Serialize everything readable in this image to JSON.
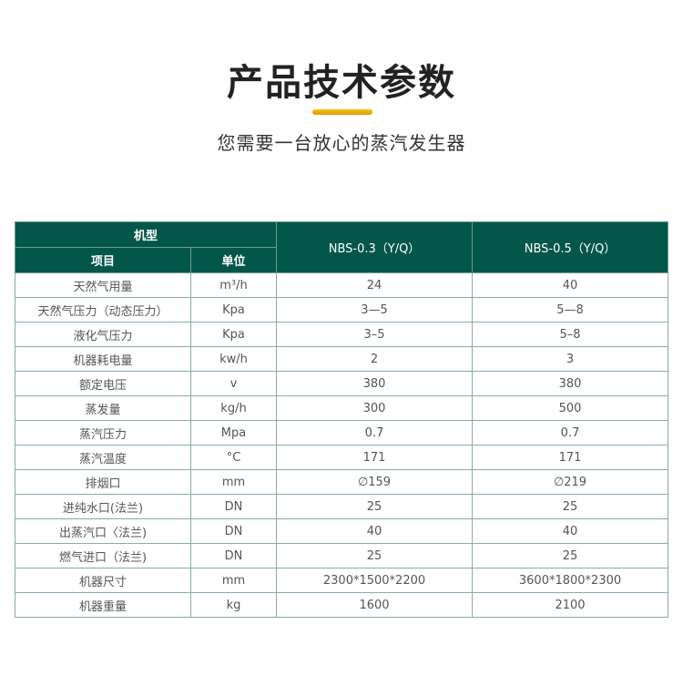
{
  "header": {
    "title": "产品技术参数",
    "subtitle": "您需要一台放心的蒸汽发生器",
    "accent_color": "#f0b400",
    "table_header_color": "#03564a"
  },
  "table": {
    "group_header": "机型",
    "col_item": "项目",
    "col_unit": "单位",
    "models": [
      "NBS-0.3（Y/Q）",
      "NBS-0.5（Y/Q）"
    ],
    "rows": [
      [
        "天然气用量",
        "m³/h",
        "24",
        "40"
      ],
      [
        "天然气压力（动态压力）",
        "Kpa",
        "3—5",
        "5—8"
      ],
      [
        "液化气压力",
        "Kpa",
        "3–5",
        "5–8"
      ],
      [
        "机器耗电量",
        "kw/h",
        "2",
        "3"
      ],
      [
        "额定电压",
        "v",
        "380",
        "380"
      ],
      [
        "蒸发量",
        "kg/h",
        "300",
        "500"
      ],
      [
        "蒸汽压力",
        "Mpa",
        "0.7",
        "0.7"
      ],
      [
        "蒸汽温度",
        "°C",
        "171",
        "171"
      ],
      [
        "排烟口",
        "mm",
        "∅159",
        "∅219"
      ],
      [
        "进纯水口(法兰)",
        "DN",
        "25",
        "25"
      ],
      [
        "出蒸汽口〈法兰)",
        "DN",
        "40",
        "40"
      ],
      [
        "燃气进口（法兰)",
        "DN",
        "25",
        "25"
      ],
      [
        "机器尺寸",
        "mm",
        "2300*1500*2200",
        "3600*1800*2300"
      ],
      [
        "机器重量",
        "kg",
        "1600",
        "2100"
      ]
    ]
  }
}
